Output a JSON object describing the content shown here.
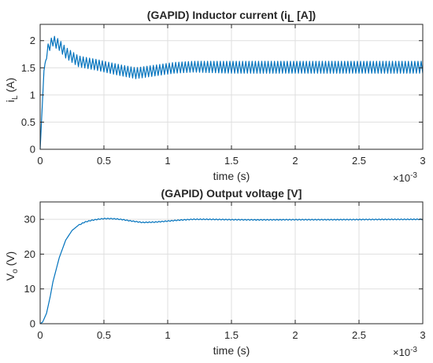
{
  "chart_data": [
    {
      "type": "line",
      "title": "(GAPID) Inductor current (i",
      "title_sub": "L",
      "title_tail": " [A])",
      "xlabel": "time (s)",
      "ylabel": "i",
      "ylabel_sub": "L",
      "ylabel_tail": " (A)",
      "x_exponent_label": "×10",
      "x_exponent": "-3",
      "xlim": [
        0,
        3
      ],
      "ylim": [
        0,
        2.3
      ],
      "xticks": [
        0,
        0.5,
        1,
        1.5,
        2,
        2.5,
        3
      ],
      "xtick_labels": [
        "0",
        "0.5",
        "1",
        "1.5",
        "2",
        "2.5",
        "3"
      ],
      "yticks": [
        0,
        0.5,
        1,
        1.5,
        2
      ],
      "ytick_labels": [
        "0",
        "0.5",
        "1",
        "1.5",
        "2"
      ],
      "grid": true,
      "line_color": "#0072bd",
      "series": [
        {
          "values": {
            "envelope_x": [
              0,
              0.03,
              0.06,
              0.1,
              0.15,
              0.2,
              0.3,
              0.45,
              0.6,
              0.75,
              0.9,
              1.05,
              1.2,
              1.5,
              2,
              2.5,
              3
            ],
            "envelope_center": [
              0,
              1.45,
              1.85,
              2.0,
              1.92,
              1.78,
              1.62,
              1.55,
              1.47,
              1.4,
              1.45,
              1.5,
              1.52,
              1.51,
              1.51,
              1.51,
              1.51
            ],
            "ripple_amplitude": [
              0,
              0.0,
              0.08,
              0.1,
              0.1,
              0.1,
              0.1,
              0.1,
              0.1,
              0.1,
              0.1,
              0.1,
              0.1,
              0.11,
              0.11,
              0.11,
              0.11
            ],
            "ripple_period_ms": 0.025
          }
        }
      ]
    },
    {
      "type": "line",
      "title": "(GAPID) Output voltage [V]",
      "xlabel": "time (s)",
      "ylabel": "V",
      "ylabel_sub": "o",
      "ylabel_tail": " (V)",
      "x_exponent_label": "×10",
      "x_exponent": "-3",
      "xlim": [
        0,
        3
      ],
      "ylim": [
        0,
        35
      ],
      "xticks": [
        0,
        0.5,
        1,
        1.5,
        2,
        2.5,
        3
      ],
      "xtick_labels": [
        "0",
        "0.5",
        "1",
        "1.5",
        "2",
        "2.5",
        "3"
      ],
      "yticks": [
        0,
        10,
        20,
        30
      ],
      "ytick_labels": [
        "0",
        "10",
        "20",
        "30"
      ],
      "grid": true,
      "line_color": "#0072bd",
      "series": [
        {
          "values": {
            "x": [
              0,
              0.02,
              0.05,
              0.08,
              0.1,
              0.15,
              0.2,
              0.25,
              0.3,
              0.35,
              0.4,
              0.45,
              0.5,
              0.55,
              0.6,
              0.65,
              0.7,
              0.8,
              0.9,
              1.0,
              1.1,
              1.2,
              1.3,
              1.5,
              1.7,
              2.0,
              2.3,
              2.6,
              3.0
            ],
            "y": [
              0,
              0.5,
              3,
              8,
              12,
              19,
              24,
              26.8,
              28.3,
              29.2,
              29.7,
              30.0,
              30.2,
              30.2,
              30.1,
              29.9,
              29.6,
              29.1,
              29.2,
              29.5,
              29.8,
              30.0,
              30.0,
              29.9,
              29.85,
              29.9,
              29.9,
              29.95,
              30.0
            ]
          }
        }
      ]
    }
  ]
}
